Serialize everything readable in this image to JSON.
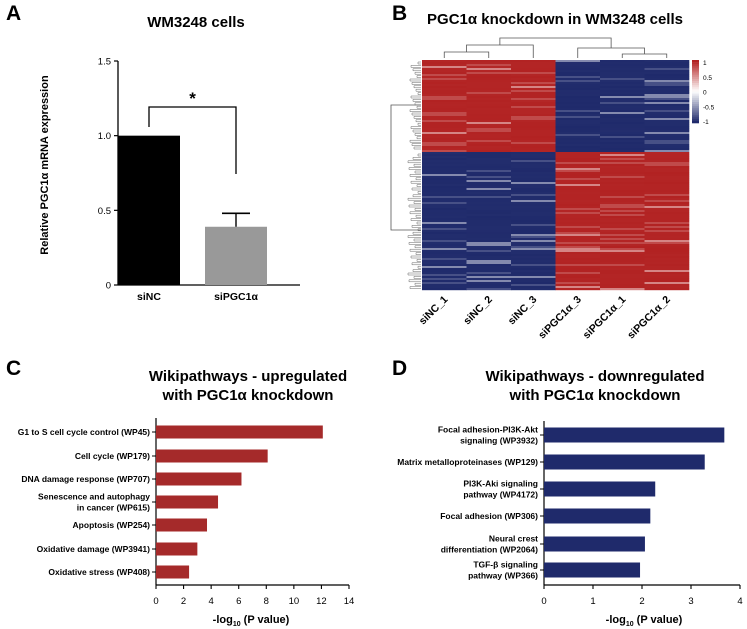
{
  "panel_letters": [
    "A",
    "B",
    "C",
    "D"
  ],
  "chart_data": [
    {
      "type": "bar",
      "panel": "A",
      "title": "WM3248 cells",
      "categories": [
        "siNC",
        "siPGC1α"
      ],
      "values": [
        1.0,
        0.39
      ],
      "error": [
        0.0,
        0.09
      ],
      "colors": [
        "#000000",
        "#999999"
      ],
      "ylabel": "Relative PGC1α mRNA expression",
      "ylim": [
        0,
        1.5
      ],
      "yticks": [
        "0",
        "0.5",
        "1.0",
        "1.5"
      ],
      "significance": "*"
    },
    {
      "type": "heatmap",
      "panel": "B",
      "title": "PGC1α knockdown in WM3248 cells",
      "columns": [
        "siNC_1",
        "siNC_2",
        "siNC_3",
        "siPGC1α_3",
        "siPGC1α_1",
        "siPGC1α_2"
      ],
      "colorbar_ticks": [
        "1",
        "0.5",
        "0",
        "-0.5",
        "-1"
      ],
      "colors": {
        "high": "#b22222",
        "mid": "#ffffff",
        "low": "#1f2a6b"
      }
    },
    {
      "type": "bar",
      "orientation": "horizontal",
      "panel": "C",
      "title": [
        "Wikipathways - upregulated",
        "with PGC1α knockdown"
      ],
      "categories": [
        [
          "G1 to S cell cycle control (WP45)"
        ],
        [
          "Cell cycle (WP179)"
        ],
        [
          "DNA damage response (WP707)"
        ],
        [
          "Senescence and autophagy",
          "in cancer (WP615)"
        ],
        [
          "Apoptosis (WP254)"
        ],
        [
          "Oxidative damage (WP3941)"
        ],
        [
          "Oxidative stress (WP408)"
        ]
      ],
      "values": [
        12.1,
        8.1,
        6.2,
        4.5,
        3.7,
        3.0,
        2.4
      ],
      "color": "#a52a2a",
      "xlim": [
        0,
        14
      ],
      "xticks": [
        "0",
        "2",
        "4",
        "6",
        "8",
        "10",
        "12",
        "14"
      ],
      "xlabel_pre": "-log",
      "xlabel_sub": "10",
      "xlabel_post": " (P value)"
    },
    {
      "type": "bar",
      "orientation": "horizontal",
      "panel": "D",
      "title": [
        "Wikipathways - downregulated",
        "with PGC1α knockdown"
      ],
      "categories": [
        [
          "Focal adhesion-PI3K-Akt",
          "signaling (WP3932)"
        ],
        [
          "Matrix metalloproteinases (WP129)"
        ],
        [
          "PI3K-Aki signaling",
          "pathway (WP4172)"
        ],
        [
          "Focal adhesion (WP306)"
        ],
        [
          "Neural crest",
          "differentiation (WP2064)"
        ],
        [
          "TGF-β signaling",
          "pathway (WP366)"
        ]
      ],
      "values": [
        3.68,
        3.28,
        2.27,
        2.17,
        2.06,
        1.96
      ],
      "color": "#1f2a6b",
      "xlim": [
        0,
        4
      ],
      "xticks": [
        "0",
        "1",
        "2",
        "3",
        "4"
      ],
      "xlabel_pre": "-log",
      "xlabel_sub": "10",
      "xlabel_post": " (P value)"
    }
  ]
}
